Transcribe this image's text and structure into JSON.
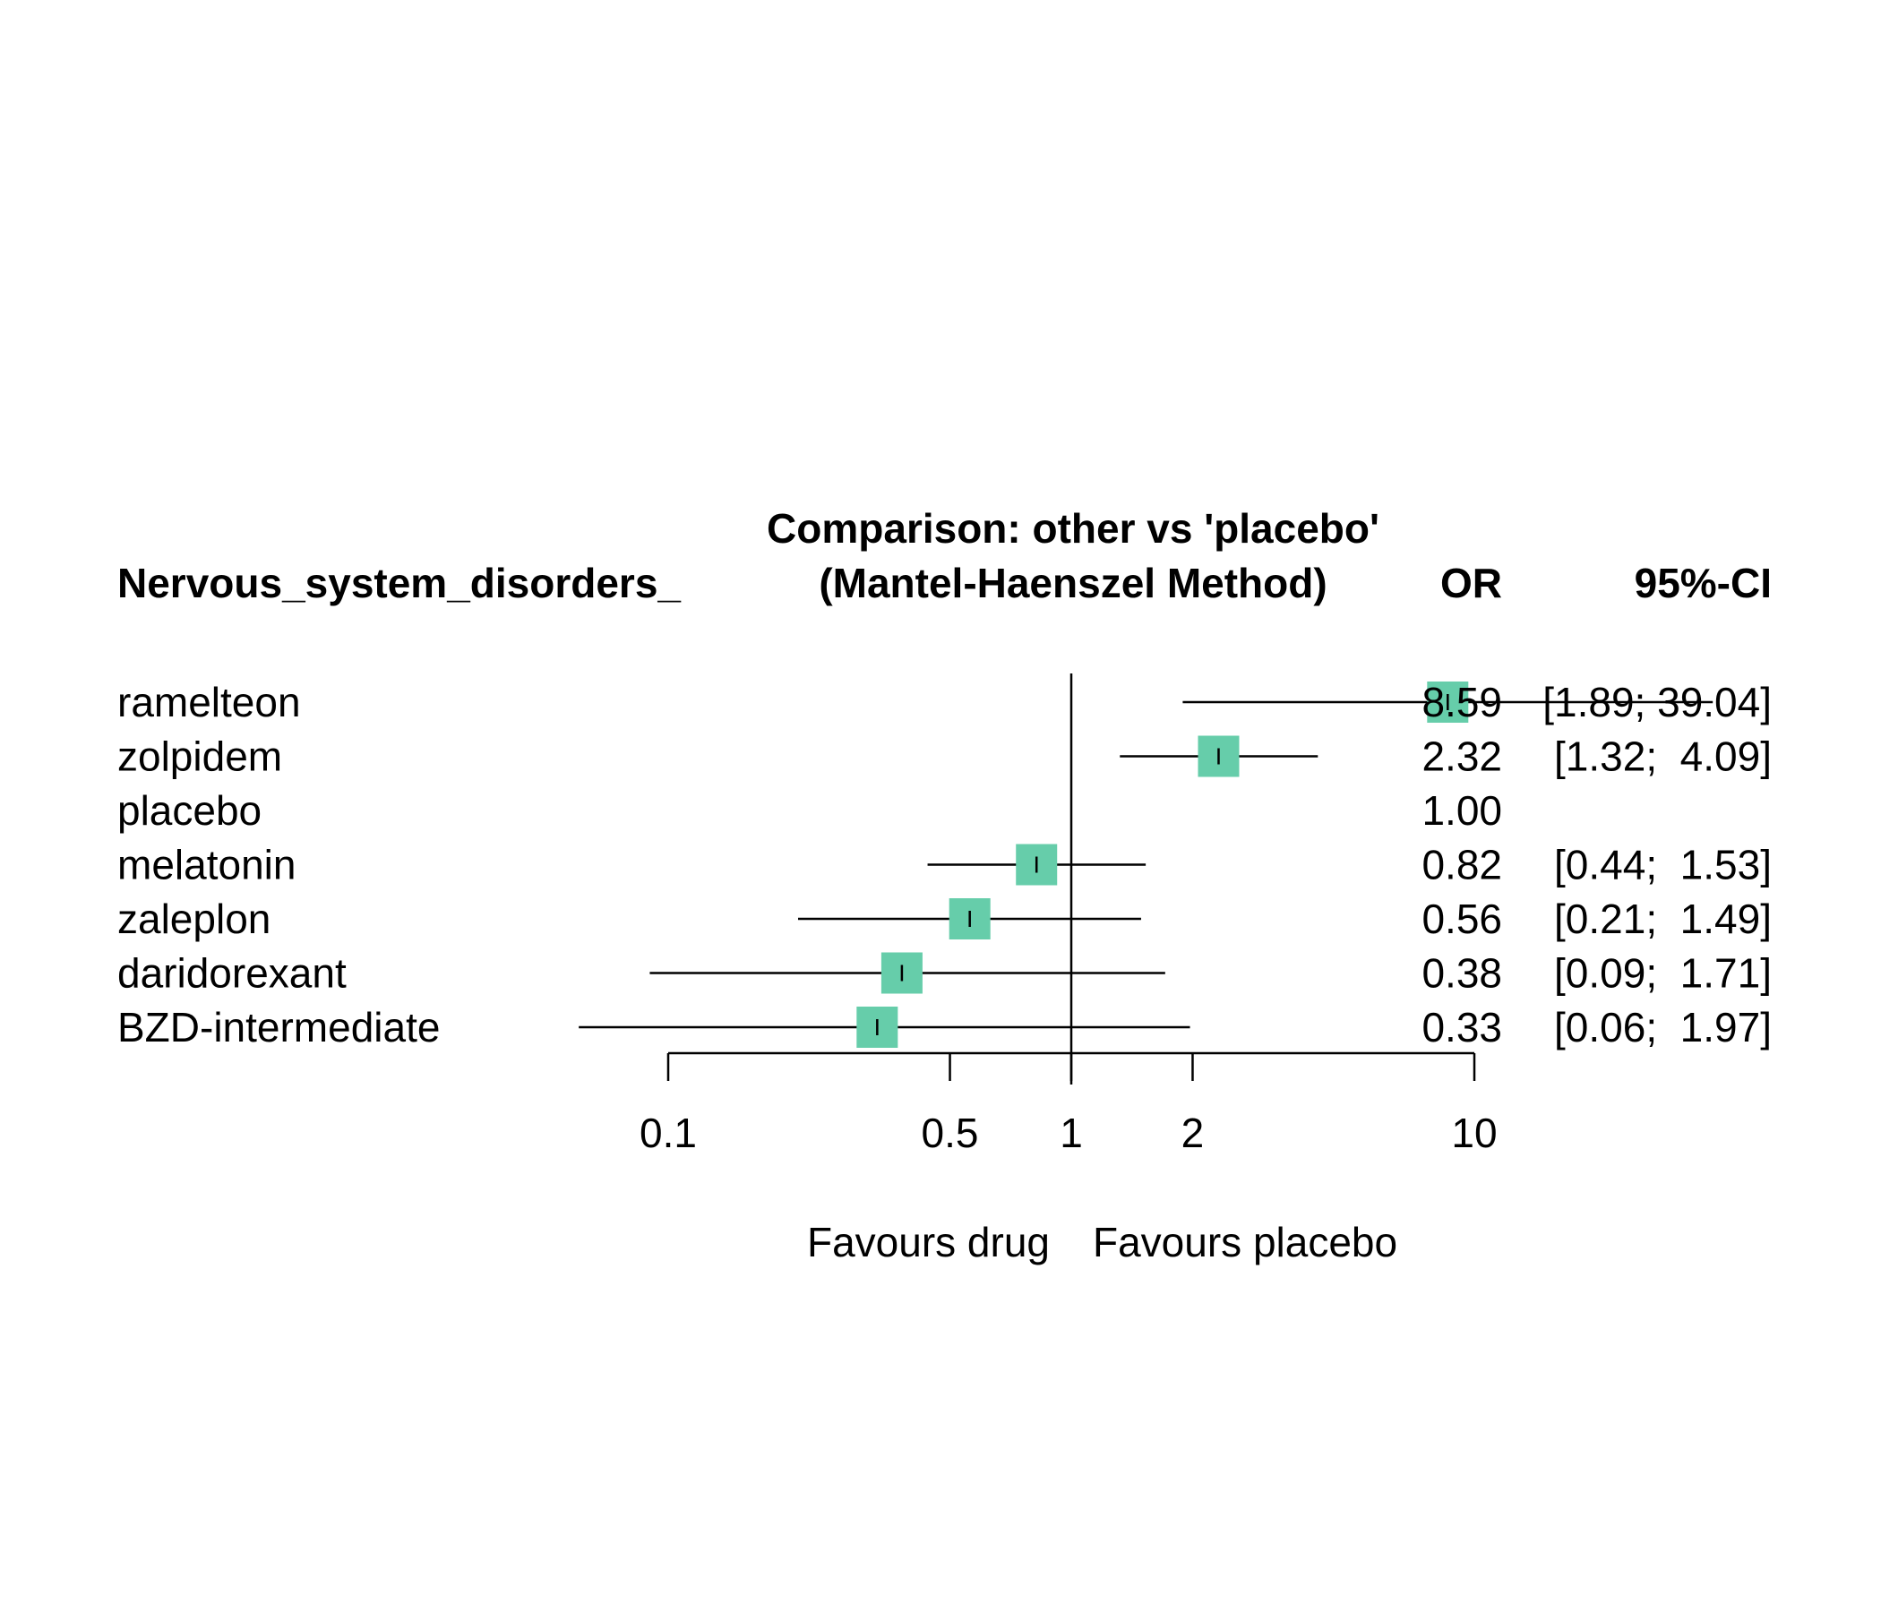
{
  "header": {
    "outcome_label": "Nervous_system_disorders_",
    "comparison_line1": "Comparison: other vs 'placebo'",
    "comparison_line2": "(Mantel-Haenszel Method)",
    "or_label": "OR",
    "ci_label": "95%-CI"
  },
  "chart_data": {
    "type": "forest",
    "scale": "log",
    "reference": 1,
    "x_ticks": [
      {
        "value": 0.1,
        "label": "0.1"
      },
      {
        "value": 0.5,
        "label": "0.5"
      },
      {
        "value": 1,
        "label": "1"
      },
      {
        "value": 2,
        "label": "2"
      },
      {
        "value": 10,
        "label": "10"
      }
    ],
    "favours_left": "Favours drug",
    "favours_right": "Favours placebo",
    "marker_color": "#66CDAA",
    "rows": [
      {
        "name": "ramelteon",
        "or": 8.59,
        "lower": 1.89,
        "upper": 39.04,
        "or_text": "8.59",
        "ci_text": "[1.89; 39.04]"
      },
      {
        "name": "zolpidem",
        "or": 2.32,
        "lower": 1.32,
        "upper": 4.09,
        "or_text": "2.32",
        "ci_text": "[1.32;  4.09]"
      },
      {
        "name": "placebo",
        "or": 1.0,
        "lower": null,
        "upper": null,
        "or_text": "1.00",
        "ci_text": ""
      },
      {
        "name": "melatonin",
        "or": 0.82,
        "lower": 0.44,
        "upper": 1.53,
        "or_text": "0.82",
        "ci_text": "[0.44;  1.53]"
      },
      {
        "name": "zaleplon",
        "or": 0.56,
        "lower": 0.21,
        "upper": 1.49,
        "or_text": "0.56",
        "ci_text": "[0.21;  1.49]"
      },
      {
        "name": "daridorexant",
        "or": 0.38,
        "lower": 0.09,
        "upper": 1.71,
        "or_text": "0.38",
        "ci_text": "[0.09;  1.71]"
      },
      {
        "name": "BZD-intermediate",
        "or": 0.33,
        "lower": 0.06,
        "upper": 1.97,
        "or_text": "0.33",
        "ci_text": "[0.06;  1.97]"
      }
    ]
  }
}
